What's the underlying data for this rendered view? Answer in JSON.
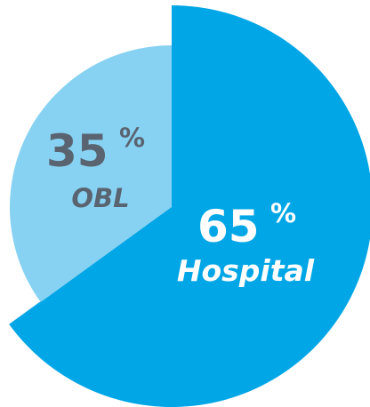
{
  "chart_data": {
    "type": "pie",
    "slices": [
      {
        "label": "Hospital",
        "value": 65,
        "value_text": "65",
        "unit": "%",
        "color": "#00a6e6",
        "text_color": "#ffffff",
        "exploded": true
      },
      {
        "label": "OBL",
        "value": 35,
        "value_text": "35",
        "unit": "%",
        "color": "#87d2f2",
        "text_color": "#5a6470",
        "exploded": false
      }
    ]
  }
}
